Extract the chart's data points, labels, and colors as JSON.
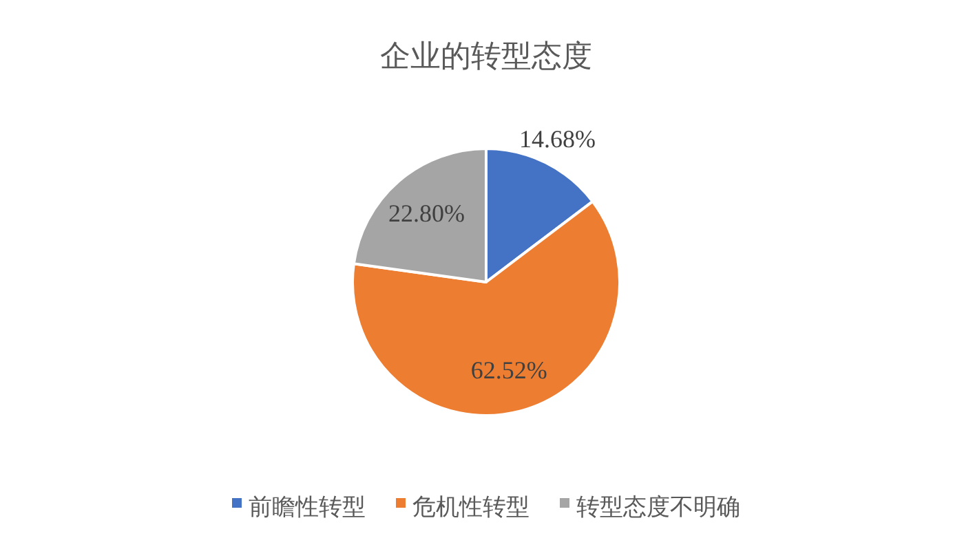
{
  "chart_data": {
    "type": "pie",
    "title": "企业的转型态度",
    "categories": [
      "前瞻性转型",
      "危机性转型",
      "转型态度不明确"
    ],
    "values": [
      14.68,
      62.52,
      22.8
    ],
    "colors": [
      "#4472c4",
      "#ed7d31",
      "#a5a5a5"
    ],
    "value_labels": [
      "14.68%",
      "62.52%",
      "22.80%"
    ],
    "legend": "bottom"
  }
}
